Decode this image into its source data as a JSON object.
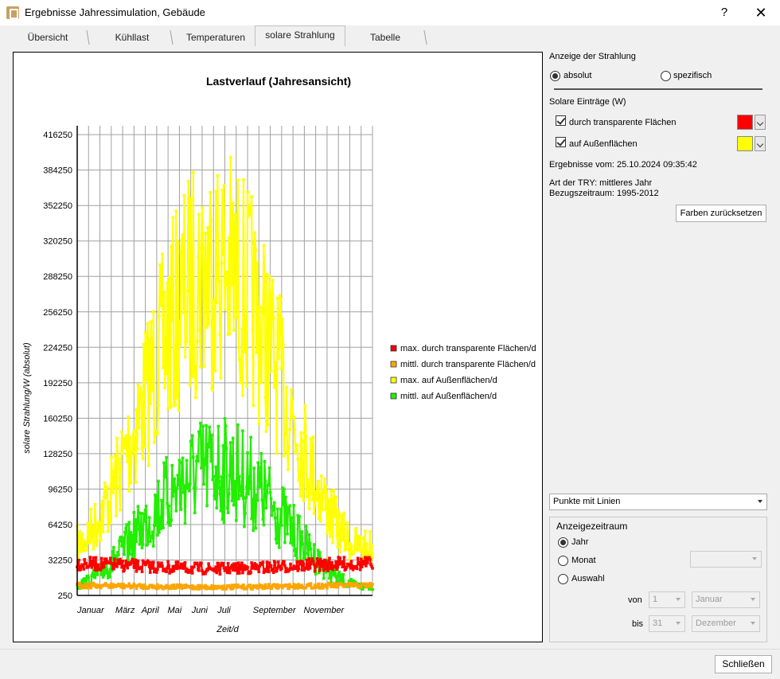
{
  "window": {
    "title": "Ergebnisse Jahressimulation, Gebäude",
    "help_label": "?",
    "close_label": "✕"
  },
  "tabs": [
    "Übersicht",
    "Kühllast",
    "Temperaturen",
    "solare Strahlung",
    "Tabelle"
  ],
  "active_tab": "solare Strahlung",
  "right_panel": {
    "display_heading": "Anzeige der Strahlung",
    "radio_absolute": "absolut",
    "radio_specific": "spezifisch",
    "entries_heading": "Solare Einträge (W)",
    "check_transparent": "durch transparente Flächen",
    "check_outer": "auf Außenflächen",
    "color_transparent": "#ff0000",
    "color_outer": "#ffff00",
    "results_date": "Ergebnisse vom: 25.10.2024 09:35:42",
    "try_type": "Art der TRY: mittleres Jahr",
    "reference_period": "Bezugszeitraum: 1995-2012",
    "reset_colors_button": "Farben zurücksetzen",
    "plot_style": "Punkte mit Linien",
    "period_group_title": "Anzeigezeitraum",
    "radio_year": "Jahr",
    "radio_month": "Monat",
    "radio_selection": "Auswahl",
    "from_label": "von",
    "to_label": "bis",
    "from_day": "1",
    "from_month": "Januar",
    "to_day": "31",
    "to_month": "Dezember"
  },
  "footer": {
    "close_button": "Schließen"
  },
  "chart_data": {
    "type": "line",
    "title": "Lastverlauf (Jahresansicht)",
    "xlabel": "Zeit/d",
    "ylabel": "solare Strahlung/W (absolut)",
    "yticks": [
      "416250",
      "384250",
      "352250",
      "320250",
      "288250",
      "256250",
      "224250",
      "192250",
      "160250",
      "128250",
      "96250",
      "64250",
      "32250",
      "250"
    ],
    "ylim": [
      250,
      424250
    ],
    "xlim": [
      1,
      365
    ],
    "xtick_labels": [
      {
        "label": "Januar",
        "day": 1
      },
      {
        "label": "März",
        "day": 60
      },
      {
        "label": "April",
        "day": 91
      },
      {
        "label": "Mai",
        "day": 121
      },
      {
        "label": "Juni",
        "day": 152
      },
      {
        "label": "Juli",
        "day": 182
      },
      {
        "label": "September",
        "day": 244
      },
      {
        "label": "November",
        "day": 305
      }
    ],
    "legend_position": "right",
    "series": [
      {
        "name": "max. durch transparente Flächen/d",
        "color": "#ff0000",
        "envelope": {
          "low": 18000,
          "high": 40000,
          "peak_day": 172,
          "seasonality": -0.25,
          "jitter": 0.35
        }
      },
      {
        "name": "mittl. durch transparente Flächen/d",
        "color": "#ffa500",
        "envelope": {
          "low": 4000,
          "high": 14000,
          "peak_day": 172,
          "seasonality": -0.2,
          "jitter": 0.4
        }
      },
      {
        "name": "max. auf Außenflächen/d",
        "color": "#ffff00",
        "envelope": {
          "low": 60000,
          "high": 410000,
          "peak_day": 172,
          "seasonality": 1.0,
          "jitter": 0.55
        }
      },
      {
        "name": "mittl. auf Außenflächen/d",
        "color": "#22ee00",
        "envelope": {
          "low": 12000,
          "high": 165000,
          "peak_day": 172,
          "seasonality": 1.0,
          "jitter": 0.6
        }
      }
    ]
  }
}
